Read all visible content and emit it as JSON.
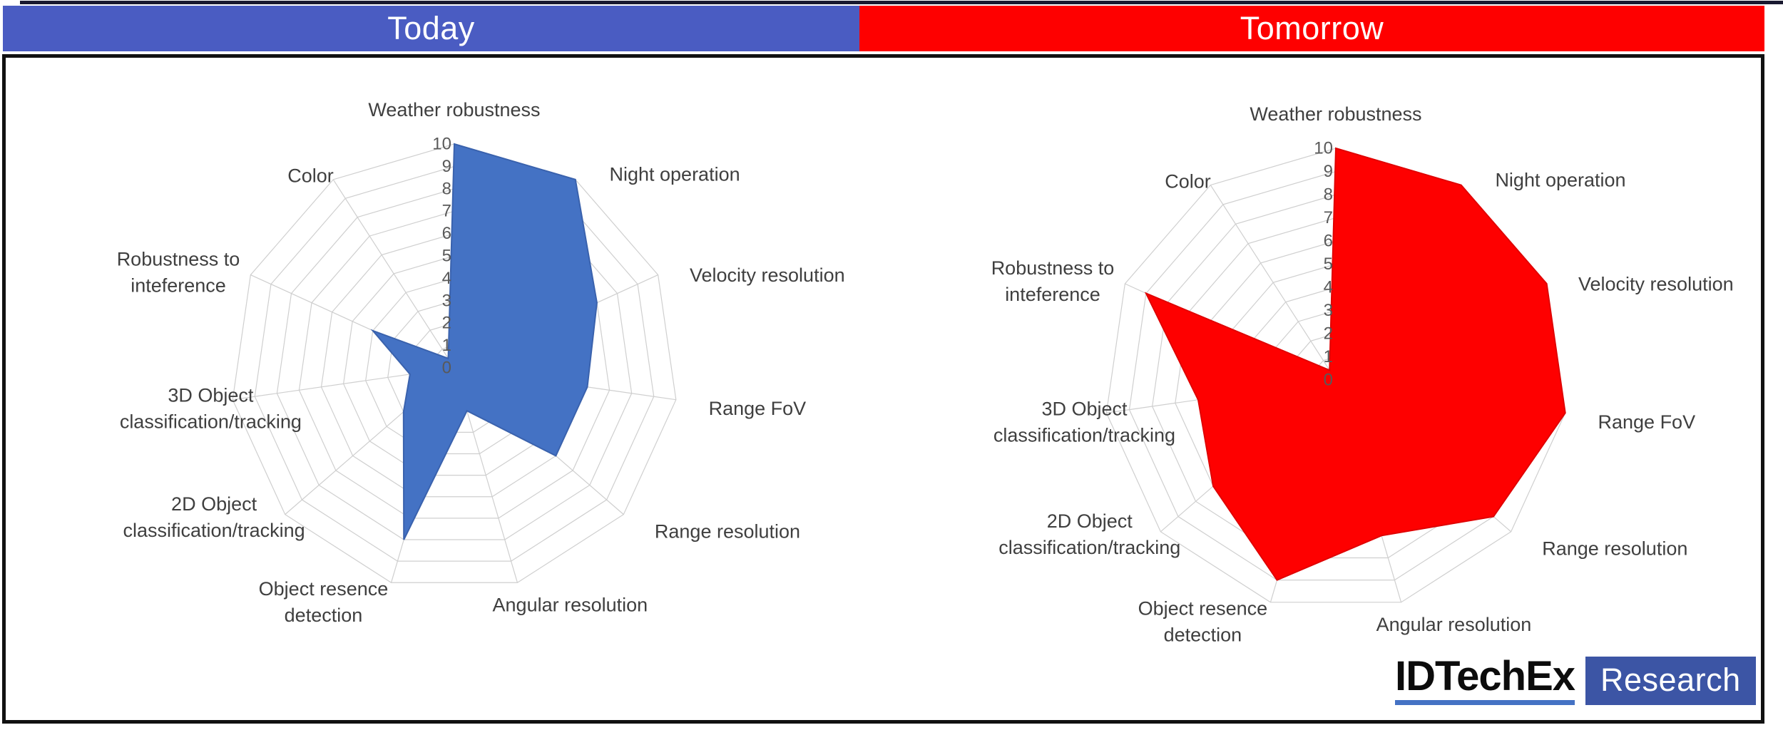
{
  "header": {
    "today": {
      "label": "Today",
      "color": "#4a5cc2"
    },
    "tomorrow": {
      "label": "Tomorrow",
      "color": "#fe0000"
    }
  },
  "logo": {
    "brand": "IDTechEx",
    "product": "Research",
    "underline_color": "#4472c4",
    "box_color": "#3c55a5"
  },
  "chart_data": [
    {
      "type": "radar",
      "title": "Today",
      "series_color": "#4472c4",
      "series_edge_color": "#3a62ad",
      "grid_color": "#cfcfcf",
      "tick_color": "#595959",
      "label_color": "#3f3f3f",
      "categories": [
        [
          "Weather robustness"
        ],
        [
          "Night operation"
        ],
        [
          "Velocity resolution"
        ],
        [
          "Range FoV"
        ],
        [
          "Range resolution"
        ],
        [
          "Angular resolution"
        ],
        [
          "Object resence",
          "detection"
        ],
        [
          "2D Object",
          "classification/tracking"
        ],
        [
          "3D Object",
          "classification/tracking"
        ],
        [
          "Robustness to",
          "inteference"
        ],
        [
          "Color"
        ]
      ],
      "values": [
        10,
        10,
        7,
        6,
        6,
        2,
        8,
        3,
        2,
        4,
        0.5
      ],
      "axis": {
        "min": 0,
        "max": 10,
        "tick_step": 1,
        "tick_labels": [
          "10",
          "9",
          "8",
          "7",
          "6",
          "5",
          "4",
          "3",
          "2",
          "1",
          "0"
        ]
      }
    },
    {
      "type": "radar",
      "title": "Tomorrow",
      "series_color": "#fe0000",
      "series_edge_color": "#e00000",
      "grid_color": "#cfcfcf",
      "tick_color": "#595959",
      "label_color": "#3f3f3f",
      "categories": [
        [
          "Weather robustness"
        ],
        [
          "Night operation"
        ],
        [
          "Velocity resolution"
        ],
        [
          "Range FoV"
        ],
        [
          "Range resolution"
        ],
        [
          "Angular resolution"
        ],
        [
          "Object resence",
          "detection"
        ],
        [
          "2D Object",
          "classification/tracking"
        ],
        [
          "3D Object",
          "classification/tracking"
        ],
        [
          "Robustness to",
          "inteference"
        ],
        [
          "Color"
        ]
      ],
      "values": [
        10,
        10,
        10,
        10,
        9,
        7,
        9,
        7,
        6,
        9,
        0.5
      ],
      "axis": {
        "min": 0,
        "max": 10,
        "tick_step": 1,
        "tick_labels": [
          "10",
          "9",
          "8",
          "7",
          "6",
          "5",
          "4",
          "3",
          "2",
          "1",
          "0"
        ]
      }
    }
  ]
}
